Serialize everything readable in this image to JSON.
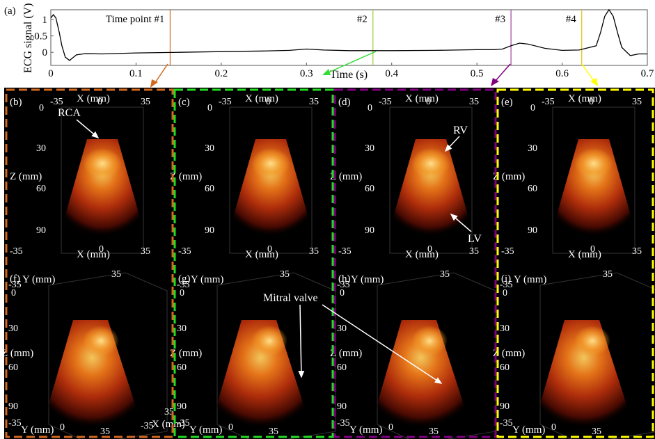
{
  "figure": {
    "panel_a_label": "(a)",
    "ecg": {
      "ylabel": "ECG signal (V)",
      "xlabel": "Time (s)",
      "xticks": [
        "0",
        "0.1",
        "0.2",
        "0.3",
        "0.4",
        "0.5",
        "0.6",
        "0.7"
      ],
      "yticks": [
        "1",
        "0.5",
        "0"
      ],
      "time_points": [
        {
          "label": "Time point #1",
          "t": 0.14,
          "color": "#d2691e"
        },
        {
          "label": "#2",
          "t": 0.378,
          "color": "#9acd32"
        },
        {
          "label": "#3",
          "t": 0.54,
          "color": "#a040a0"
        },
        {
          "label": "#4",
          "t": 0.623,
          "color": "#e5c100"
        }
      ]
    },
    "panels": [
      {
        "label": "(b)",
        "color": "#d2691e",
        "view": "front",
        "annotation": "RCA"
      },
      {
        "label": "(c)",
        "color": "#22dd22",
        "view": "front",
        "annotation": ""
      },
      {
        "label": "(d)",
        "color": "#800080",
        "view": "front",
        "annotation": "RV",
        "annotation2": "LV"
      },
      {
        "label": "(e)",
        "color": "#ffff00",
        "view": "front",
        "annotation": ""
      },
      {
        "label": "(f)",
        "color": "#d2691e",
        "view": "iso"
      },
      {
        "label": "(g)",
        "color": "#22dd22",
        "view": "iso",
        "annotation": "Mitral valve"
      },
      {
        "label": "(h)",
        "color": "#800080",
        "view": "iso"
      },
      {
        "label": "(i)",
        "color": "#ffff00",
        "view": "iso"
      }
    ],
    "axes": {
      "x_mm": "X (mm)",
      "y_mm": "Y (mm)",
      "z_mm": "Z (mm)",
      "neg35": "-35",
      "pos35": "35",
      "zero": "0",
      "z_ticks": [
        "0",
        "30",
        "60",
        "90"
      ]
    }
  },
  "chart_data": {
    "type": "line",
    "xlabel": "Time (s)",
    "ylabel": "ECG signal (V)",
    "xlim": [
      0,
      0.7
    ],
    "ylim": [
      -0.4,
      1.3
    ],
    "x": [
      0,
      0.003,
      0.006,
      0.01,
      0.013,
      0.017,
      0.022,
      0.03,
      0.04,
      0.06,
      0.1,
      0.15,
      0.2,
      0.25,
      0.28,
      0.3,
      0.32,
      0.35,
      0.4,
      0.45,
      0.5,
      0.52,
      0.53,
      0.54,
      0.55,
      0.56,
      0.58,
      0.6,
      0.62,
      0.64,
      0.645,
      0.65,
      0.655,
      0.66,
      0.665,
      0.67,
      0.68,
      0.69,
      0.7
    ],
    "y": [
      1.05,
      1.15,
      1.05,
      0.6,
      0.2,
      -0.15,
      -0.25,
      -0.08,
      -0.04,
      -0.05,
      -0.02,
      0.0,
      0.02,
      0.04,
      0.06,
      0.1,
      0.07,
      0.05,
      0.05,
      0.06,
      0.08,
      0.08,
      0.1,
      0.2,
      0.28,
      0.25,
      0.12,
      0.06,
      0.07,
      0.2,
      0.6,
      1.1,
      1.3,
      1.1,
      0.6,
      0.15,
      -0.1,
      -0.05,
      -0.05
    ]
  }
}
